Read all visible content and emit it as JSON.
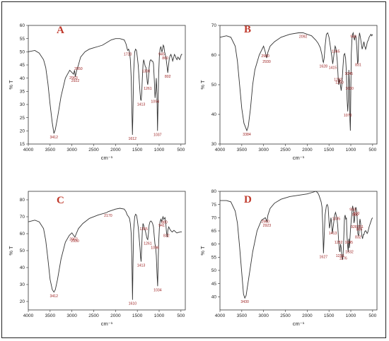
{
  "chart_data": [
    {
      "type": "line",
      "panel": "A",
      "xlabel": "cm⁻¹",
      "ylabel": "% T",
      "xlim": [
        4000,
        400
      ],
      "ylim": [
        15,
        60
      ],
      "xticks": [
        4000,
        3500,
        3000,
        2500,
        2000,
        1500,
        1000,
        500
      ],
      "yticks": [
        15,
        20,
        25,
        30,
        35,
        40,
        45,
        50,
        55,
        60
      ],
      "series": [
        {
          "x": [
            4000,
            3850,
            3750,
            3650,
            3600,
            3550,
            3500,
            3450,
            3412,
            3380,
            3330,
            3250,
            3150,
            3050,
            2963,
            2940,
            2922,
            2890,
            2850,
            2800,
            2700,
            2600,
            2500,
            2400,
            2300,
            2200,
            2100,
            2000,
            1900,
            1800,
            1760,
            1730,
            1720,
            1700,
            1680,
            1660,
            1640,
            1625,
            1612,
            1600,
            1585,
            1560,
            1540,
            1520,
            1500,
            1480,
            1460,
            1440,
            1425,
            1413,
            1400,
            1385,
            1370,
            1355,
            1340,
            1320,
            1300,
            1285,
            1272,
            1261,
            1245,
            1230,
            1210,
            1190,
            1170,
            1150,
            1130,
            1110,
            1094,
            1080,
            1065,
            1050,
            1037,
            1025,
            1010,
            995,
            980,
            960,
            945,
            935,
            920,
            905,
            890,
            875,
            860,
            845,
            830,
            815,
            802,
            790,
            770,
            750,
            730,
            710,
            690,
            670,
            650,
            630,
            610,
            590,
            570,
            550,
            530,
            510,
            490,
            470
          ],
          "y": [
            50,
            50.5,
            49.5,
            47,
            44,
            38,
            30,
            23,
            19,
            20.5,
            25,
            33,
            40,
            43,
            41.5,
            43,
            40.5,
            43,
            45,
            48,
            50,
            51,
            51.5,
            52,
            52.5,
            53.5,
            54.5,
            55,
            55,
            54.5,
            53,
            51,
            50.5,
            51,
            50,
            47,
            40,
            28,
            18.5,
            27,
            42,
            50,
            51,
            50.5,
            48,
            45,
            40,
            35,
            32,
            31.5,
            34,
            40,
            45,
            47,
            46,
            44.5,
            44,
            41,
            38.5,
            37.5,
            40,
            44,
            46.5,
            47,
            46.5,
            46.5,
            45.5,
            39,
            32.5,
            35,
            40,
            34,
            20,
            30,
            42,
            48,
            51,
            52,
            50.5,
            50,
            51,
            52.5,
            52,
            50,
            49,
            48,
            46,
            44,
            42,
            44,
            47,
            48.5,
            49,
            48,
            46.5,
            47.5,
            49,
            48.5,
            47.5,
            47,
            48,
            47.5,
            47,
            48,
            49,
            49
          ]
        }
      ],
      "annotations": [
        "3412",
        "2963",
        "2922",
        "2850",
        "1720",
        "1612",
        "1413",
        "1300",
        "1261",
        "1094",
        "1037",
        "945",
        "860",
        "802"
      ]
    },
    {
      "type": "line",
      "panel": "B",
      "xlabel": "cm⁻¹",
      "ylabel": "% T",
      "xlim": [
        4000,
        400
      ],
      "ylim": [
        30,
        70
      ],
      "xticks": [
        4000,
        3500,
        3000,
        2500,
        2000,
        1500,
        1000,
        500
      ],
      "yticks": [
        30,
        40,
        50,
        60,
        70
      ],
      "series": [
        {
          "x": [
            4000,
            3850,
            3750,
            3650,
            3600,
            3550,
            3500,
            3450,
            3384,
            3350,
            3300,
            3250,
            3200,
            3100,
            3000,
            2960,
            2930,
            2900,
            2850,
            2750,
            2600,
            2400,
            2200,
            2092,
            2000,
            1900,
            1800,
            1750,
            1700,
            1660,
            1640,
            1628,
            1610,
            1590,
            1560,
            1530,
            1500,
            1470,
            1440,
            1430,
            1415,
            1400,
            1380,
            1360,
            1345,
            1330,
            1310,
            1292,
            1280,
            1260,
            1240,
            1220,
            1200,
            1180,
            1160,
            1140,
            1120,
            1100,
            1085,
            1070,
            1055,
            1045,
            1030,
            1020,
            1010,
            1000,
            990,
            975,
            960,
            945,
            930,
            915,
            900,
            880,
            860,
            845,
            831,
            820,
            800,
            780,
            760,
            740,
            720,
            700,
            680,
            660,
            640,
            620,
            600,
            580,
            560,
            540,
            520,
            500
          ],
          "y": [
            66,
            66.5,
            66,
            63,
            58,
            50,
            42,
            37,
            34.5,
            36,
            42,
            50,
            55,
            60,
            63,
            61,
            59,
            61,
            63,
            64.5,
            66,
            67,
            67.5,
            67.5,
            67,
            66.5,
            65,
            64,
            62.5,
            60,
            58,
            57.5,
            59,
            63,
            67,
            67.5,
            66,
            63,
            60,
            59,
            57,
            58.5,
            61,
            63,
            62.5,
            61,
            58,
            53,
            50,
            52,
            50,
            48,
            51,
            56,
            60,
            60.5,
            59,
            54,
            45,
            41,
            45,
            55,
            50,
            38,
            34.5,
            47,
            60,
            65,
            67,
            67.5,
            66,
            65,
            66.5,
            66,
            62,
            57,
            58,
            65,
            67.5,
            66,
            64,
            62,
            63,
            64.5,
            63,
            62,
            63,
            64.5,
            65,
            66,
            66.5,
            67,
            66.5,
            67
          ]
        }
      ],
      "annotations": [
        "3384",
        "2960",
        "2930",
        "2092",
        "1628",
        "1415",
        "1345",
        "1292",
        "1260",
        "1070",
        "1045",
        "1030",
        "940",
        "831"
      ]
    },
    {
      "type": "line",
      "panel": "C",
      "xlabel": "cm⁻¹",
      "ylabel": "% T",
      "xlim": [
        4000,
        400
      ],
      "ylim": [
        15,
        85
      ],
      "xticks": [
        4000,
        3500,
        3000,
        2500,
        2000,
        1500,
        1000,
        500
      ],
      "yticks": [
        20,
        30,
        40,
        50,
        60,
        70,
        80
      ],
      "series": [
        {
          "x": [
            4000,
            3850,
            3750,
            3650,
            3600,
            3550,
            3500,
            3450,
            3412,
            3380,
            3330,
            3250,
            3150,
            3060,
            3000,
            2962,
            2930,
            2900,
            2850,
            2750,
            2600,
            2400,
            2200,
            2170,
            2000,
            1900,
            1800,
            1760,
            1730,
            1700,
            1680,
            1660,
            1640,
            1625,
            1610,
            1600,
            1585,
            1560,
            1540,
            1520,
            1500,
            1480,
            1460,
            1440,
            1425,
            1413,
            1400,
            1385,
            1370,
            1355,
            1340,
            1320,
            1310,
            1290,
            1275,
            1261,
            1245,
            1230,
            1210,
            1190,
            1170,
            1150,
            1130,
            1110,
            1096,
            1080,
            1065,
            1050,
            1034,
            1025,
            1010,
            995,
            980,
            960,
            941,
            925,
            910,
            895,
            880,
            865,
            850,
            832,
            815,
            800,
            780,
            760,
            740,
            720,
            700,
            680,
            660,
            640,
            620,
            600,
            580,
            560,
            540,
            520,
            500,
            480
          ],
          "y": [
            67,
            68,
            67,
            63,
            56,
            45,
            33,
            27,
            25.5,
            27,
            33,
            45,
            55,
            59,
            60.5,
            59,
            58,
            60,
            63,
            66,
            69,
            71,
            72.5,
            73,
            74.5,
            75,
            74.5,
            73,
            71,
            70,
            69,
            66,
            60,
            45,
            21,
            40,
            62,
            70,
            71.5,
            71,
            68,
            64,
            58,
            52,
            46,
            43.5,
            52,
            62,
            66,
            65,
            63,
            62,
            61,
            58.5,
            57,
            56.5,
            60,
            65,
            67,
            67.5,
            67,
            66,
            64,
            58,
            54,
            52,
            47,
            37,
            29,
            40,
            55,
            63,
            67,
            68.5,
            67,
            69,
            70,
            68.5,
            69,
            69.5,
            67,
            61,
            58,
            62,
            64,
            63,
            62,
            61.5,
            61,
            61.5,
            62,
            61.5,
            61,
            60.5,
            60.5,
            60.8,
            60.8,
            61,
            61,
            61
          ]
        }
      ],
      "annotations": [
        "3412",
        "2962",
        "2930",
        "2170",
        "1610",
        "1413",
        "1355",
        "1261",
        "1096",
        "1034",
        "941",
        "880",
        "832"
      ]
    },
    {
      "type": "line",
      "panel": "D",
      "xlabel": "cm⁻¹",
      "ylabel": "% T",
      "xlim": [
        4000,
        400
      ],
      "ylim": [
        35,
        80
      ],
      "xticks": [
        4000,
        3500,
        3000,
        2500,
        2000,
        1500,
        1000,
        500
      ],
      "yticks": [
        40,
        45,
        50,
        55,
        60,
        65,
        70,
        75,
        80
      ],
      "series": [
        {
          "x": [
            4000,
            3850,
            3750,
            3650,
            3600,
            3550,
            3500,
            3460,
            3430,
            3400,
            3350,
            3250,
            3150,
            3050,
            2960,
            2923,
            2900,
            2850,
            2750,
            2600,
            2400,
            2200,
            2000,
            1900,
            1800,
            1760,
            1730,
            1700,
            1680,
            1660,
            1645,
            1627,
            1610,
            1590,
            1560,
            1540,
            1520,
            1505,
            1490,
            1470,
            1455,
            1440,
            1425,
            1413,
            1400,
            1385,
            1370,
            1350,
            1335,
            1320,
            1300,
            1282,
            1265,
            1250,
            1235,
            1220,
            1205,
            1190,
            1176,
            1160,
            1145,
            1130,
            1115,
            1100,
            1090,
            1075,
            1060,
            1045,
            1032,
            1020,
            1005,
            990,
            975,
            958,
            942,
            928,
            915,
            900,
            885,
            870,
            855,
            840,
            820,
            805,
            790,
            775,
            760,
            745,
            730,
            715,
            700,
            685,
            670,
            655,
            640,
            625,
            610,
            595,
            580,
            560,
            540,
            520,
            500
          ],
          "y": [
            76.5,
            76.5,
            76,
            72.5,
            68,
            59,
            49,
            41,
            39.5,
            40.5,
            46,
            57,
            65,
            69,
            70,
            68.5,
            71,
            73.5,
            75.5,
            77,
            78,
            78.5,
            79,
            79.5,
            80,
            79.5,
            78.5,
            77,
            76,
            74,
            68,
            56.5,
            63,
            71,
            74.5,
            75,
            74,
            70,
            66,
            68,
            70,
            68,
            64,
            65.5,
            67,
            69,
            71,
            72,
            71,
            70,
            67,
            62,
            58,
            57,
            60,
            58.5,
            55,
            54,
            56,
            63,
            70,
            71,
            69.5,
            70,
            64,
            60,
            57,
            62,
            58.5,
            62,
            66,
            69,
            72,
            74.5,
            73,
            68,
            69,
            72.5,
            74,
            73,
            70,
            64,
            63,
            67,
            69.5,
            68,
            65,
            63,
            62,
            63.5,
            63.5,
            64.5,
            65,
            65,
            64.5,
            64,
            64.5,
            65.5,
            66.5,
            67.5,
            68.5,
            69.5,
            70
          ]
        }
      ],
      "annotations": [
        "3430",
        "2960",
        "2923",
        "1627",
        "1413",
        "1335",
        "1282",
        "1250",
        "1176",
        "1045",
        "1032",
        "958",
        "928",
        "900",
        "870",
        "832",
        "805",
        "781"
      ]
    }
  ]
}
